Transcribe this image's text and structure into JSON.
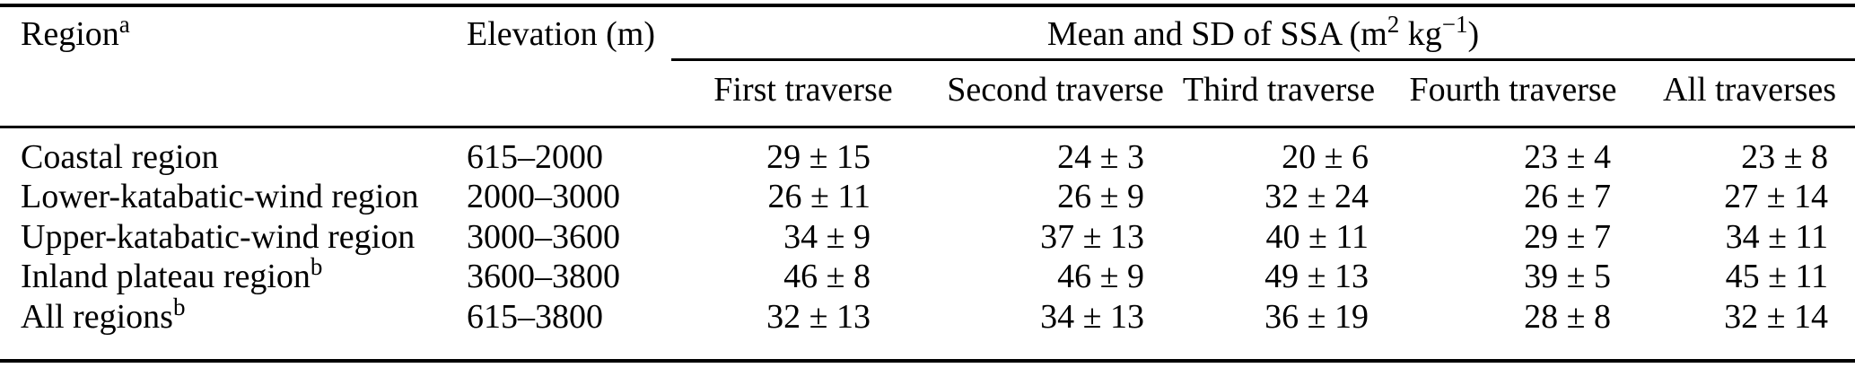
{
  "table": {
    "header": {
      "region": {
        "label": "Region",
        "sup": "a"
      },
      "elevation": "Elevation (m)",
      "ssa": {
        "p1": "Mean and SD of SSA (m",
        "sup1": "2",
        "p2": " kg",
        "sup2": "−1",
        "p3": ")"
      },
      "traverses": [
        "First traverse",
        "Second traverse",
        "Third traverse",
        "Fourth traverse",
        "All traverses"
      ]
    },
    "rows": [
      {
        "region": "Coastal region",
        "sup": "",
        "elevation": "615–2000",
        "values": [
          "29 ± 15",
          "24 ± 3",
          "20 ± 6",
          "23 ± 4",
          "23 ± 8"
        ]
      },
      {
        "region": "Lower-katabatic-wind region",
        "sup": "",
        "elevation": "2000–3000",
        "values": [
          "26 ± 11",
          "26 ± 9",
          "32 ± 24",
          "26 ± 7",
          "27 ± 14"
        ]
      },
      {
        "region": "Upper-katabatic-wind region",
        "sup": "",
        "elevation": "3000–3600",
        "values": [
          "34 ± 9",
          "37 ± 13",
          "40 ± 11",
          "29 ± 7",
          "34 ± 11"
        ]
      },
      {
        "region": "Inland plateau region",
        "sup": "b",
        "elevation": "3600–3800",
        "values": [
          "46 ± 8",
          "46 ± 9",
          "49 ± 13",
          "39 ± 5",
          "45 ± 11"
        ]
      },
      {
        "region": "All regions",
        "sup": "b",
        "elevation": "615–3800",
        "values": [
          "32 ± 13",
          "34 ± 13",
          "36 ± 19",
          "28 ± 8",
          "32 ± 14"
        ]
      }
    ],
    "colors": {
      "text": "#000000",
      "rule": "#000000",
      "background": "#ffffff"
    }
  }
}
